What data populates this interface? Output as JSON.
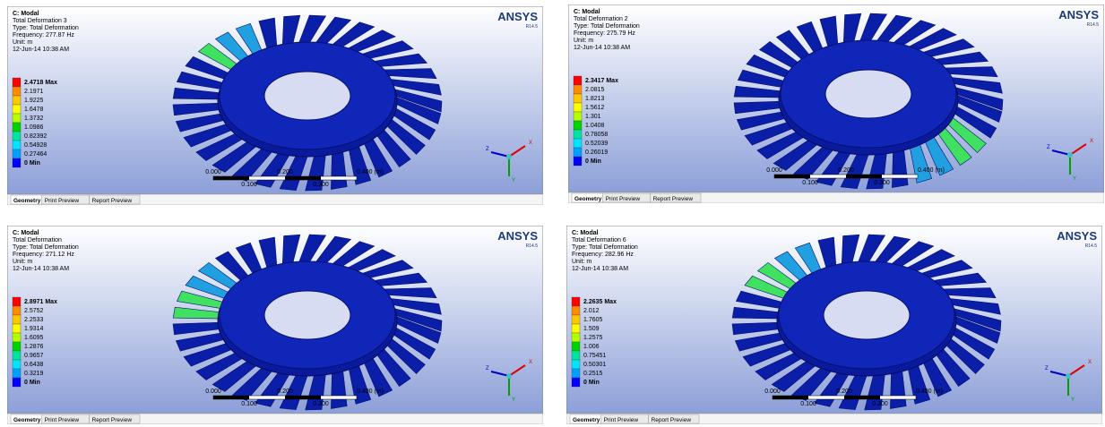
{
  "panels": [
    {
      "brand": "ANSYS",
      "version": "R14.5",
      "header": [
        "C: Modal",
        "Total Deformation 3",
        "Type: Total Deformation",
        "Frequency: 277.87 Hz",
        "Unit: m",
        "12-Jun-14 10:38 AM"
      ],
      "legend": [
        "2.4718 Max",
        "2.1971",
        "1.9225",
        "1.6478",
        "1.3732",
        "1.0986",
        "0.82392",
        "0.54928",
        "0.27464",
        "0 Min"
      ],
      "scale_top": [
        "0.000",
        "0.200",
        "0.400 (m)"
      ],
      "scale_bottom": [
        "0.100",
        "0.300"
      ],
      "axes": [
        "X",
        "Y",
        "Z"
      ],
      "tabs": [
        "Geometry",
        "Print Preview",
        "Report Preview"
      ]
    },
    {
      "brand": "ANSYS",
      "version": "R14.5",
      "header": [
        "C: Modal",
        "Total Deformation 2",
        "Type: Total Deformation",
        "Frequency: 275.79 Hz",
        "Unit: m",
        "12-Jun-14 10:38 AM"
      ],
      "legend": [
        "2.3417 Max",
        "2.0815",
        "1.8213",
        "1.5612",
        "1.301",
        "1.0408",
        "0.78058",
        "0.52039",
        "0.26019",
        "0 Min"
      ],
      "scale_top": [
        "0.000",
        "0.200",
        "0.400 (m)"
      ],
      "scale_bottom": [
        "0.100",
        "0.300"
      ],
      "axes": [
        "X",
        "Y",
        "Z"
      ],
      "tabs": [
        "Geometry",
        "Print Preview",
        "Report Preview"
      ]
    },
    {
      "brand": "ANSYS",
      "version": "R14.5",
      "header": [
        "C: Modal",
        "Total Deformation",
        "Type: Total Deformation",
        "Frequency: 271.12 Hz",
        "Unit: m",
        "12-Jun-14 10:38 AM"
      ],
      "legend": [
        "2.8971 Max",
        "2.5752",
        "2.2533",
        "1.9314",
        "1.6095",
        "1.2876",
        "0.9657",
        "0.6438",
        "0.3219",
        "0 Min"
      ],
      "scale_top": [
        "0.000",
        "0.200",
        "0.400 (m)"
      ],
      "scale_bottom": [
        "0.100",
        "0.300"
      ],
      "axes": [
        "X",
        "Y",
        "Z"
      ],
      "tabs": [
        "Geometry",
        "Print Preview",
        "Report Preview"
      ]
    },
    {
      "brand": "ANSYS",
      "version": "R14.5",
      "header": [
        "C: Modal",
        "Total Deformation 6",
        "Type: Total Deformation",
        "Frequency: 282.96 Hz",
        "Unit: m",
        "12-Jun-14 10:38 AM"
      ],
      "legend": [
        "2.2635 Max",
        "2.012",
        "1.7605",
        "1.509",
        "1.2575",
        "1.006",
        "0.75451",
        "0.50301",
        "0.2515",
        "0 Min"
      ],
      "scale_top": [
        "0.000",
        "0.200",
        "0.400 (m)"
      ],
      "scale_bottom": [
        "0.100",
        "0.300"
      ],
      "axes": [
        "X",
        "Y",
        "Z"
      ],
      "tabs": [
        "Geometry",
        "Print Preview",
        "Report Preview"
      ]
    }
  ]
}
